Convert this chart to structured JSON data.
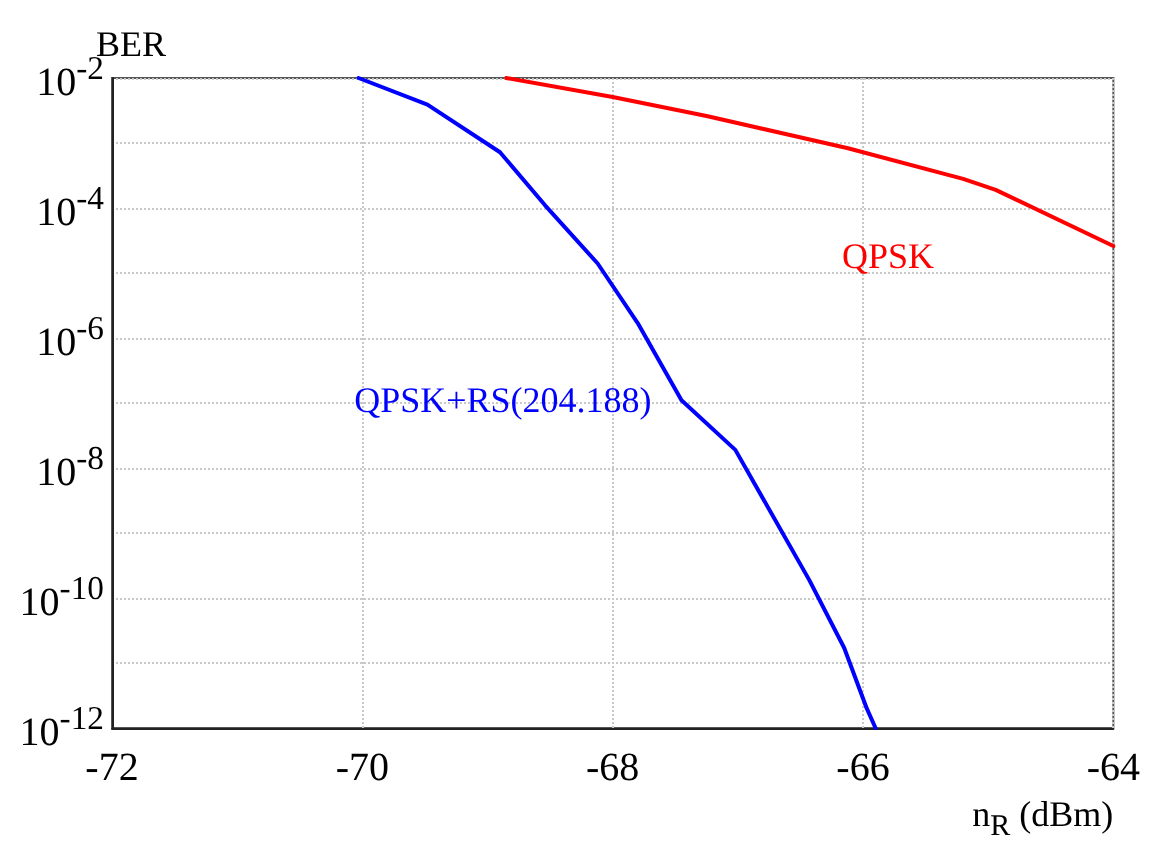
{
  "chart_data": {
    "type": "line",
    "ylabel": "BER",
    "xlabel": "n$_{R}$ (dBm)",
    "log": "y",
    "grid": true,
    "legend": false,
    "marker": "none",
    "line_style": "solid",
    "xlim": [
      -72,
      -64
    ],
    "xticks": [
      -72,
      -70,
      -68,
      -66,
      -64
    ],
    "ylim": [
      1e-12,
      0.01
    ],
    "yticks": [
      {
        "value": 1e-12,
        "label": "10$^{-12}$"
      },
      {
        "value": 1e-11,
        "label": null
      },
      {
        "value": 1e-10,
        "label": "10$^{-10}$"
      },
      {
        "value": 1e-09,
        "label": null
      },
      {
        "value": 1e-08,
        "label": "10$^{-8}$"
      },
      {
        "value": 1e-07,
        "label": null
      },
      {
        "value": 1e-06,
        "label": "10$^{-6}$"
      },
      {
        "value": 1e-05,
        "label": null
      },
      {
        "value": 0.0001,
        "label": "10$^{-4}$"
      },
      {
        "value": 0.001,
        "label": null
      },
      {
        "value": 0.01,
        "label": "10$^{-2}$"
      }
    ],
    "series": [
      {
        "name": "QPSK",
        "color": "#ff0000",
        "x": [
          -68.85,
          -68,
          -67.25,
          -66.12,
          -65.2,
          -64.94,
          -64
        ],
        "values": [
          0.01,
          0.0051,
          0.0026,
          0.00083,
          0.00028,
          0.00019,
          2.6e-05
        ]
      },
      {
        "name": "QPSK+RS(204.188)",
        "color": "#0000ff",
        "x": [
          -70.03,
          -69.48,
          -68.9,
          -68.54,
          -68.12,
          -67.8,
          -67.45,
          -67.02,
          -66.43,
          -66.15,
          -65.97,
          -65.9
        ],
        "values": [
          0.01,
          0.0039,
          0.00072,
          0.00011,
          1.4e-05,
          1.7e-06,
          1.1e-07,
          1.9e-08,
          1.9e-10,
          1.7e-11,
          2e-12,
          1e-12
        ]
      }
    ]
  }
}
